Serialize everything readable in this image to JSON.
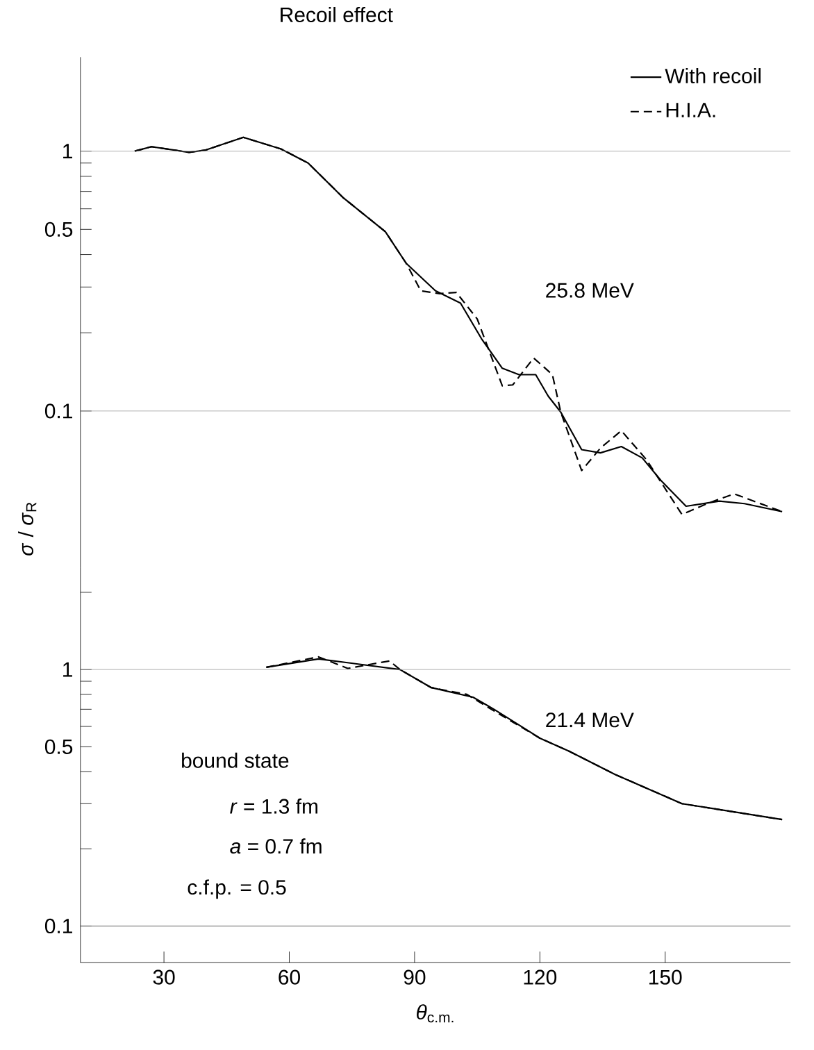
{
  "chart_data": [
    {
      "type": "line",
      "title": "Recoil effect",
      "ylabel": "*σ* / *σ*$_{R}$",
      "log": "y",
      "tick_labels": "y",
      "legend": "top right",
      "xlim": [
        10,
        180
      ],
      "ylim": [
        0.025,
        2.3
      ],
      "yticks": [
        1,
        {
          "value": 0.9,
          "label": null
        },
        {
          "value": 0.8,
          "label": null
        },
        {
          "value": 0.7,
          "label": null
        },
        {
          "value": 0.6,
          "label": null
        },
        0.5,
        {
          "value": 0.4,
          "label": null
        },
        {
          "value": 0.3,
          "label": null
        },
        {
          "value": 0.2,
          "label": null
        },
        0.1
      ],
      "ref_lines": [
        {
          "axis": "y",
          "value": 1,
          "color": "#999999"
        },
        {
          "axis": "y",
          "value": 0.1,
          "color": "#999999"
        }
      ],
      "annotations": [
        "25.8 MeV"
      ],
      "series": [
        {
          "name": "With recoil",
          "color": "#000000",
          "line_style": "solid",
          "x": [
            23,
            27,
            36,
            40,
            49,
            58,
            64.5,
            73,
            83,
            88,
            95,
            101,
            106,
            111,
            115,
            119,
            122,
            125,
            130,
            134.5,
            139.5,
            144.5,
            149,
            155,
            163,
            169,
            178
          ],
          "values": [
            1.0,
            1.04,
            0.99,
            1.01,
            1.13,
            1.02,
            0.9,
            0.66,
            0.49,
            0.37,
            0.29,
            0.26,
            0.19,
            0.146,
            0.138,
            0.138,
            0.114,
            0.099,
            0.071,
            0.069,
            0.073,
            0.066,
            0.054,
            0.043,
            0.045,
            0.044,
            0.041
          ]
        },
        {
          "name": "H.I.A.",
          "color": "#000000",
          "line_style": "dashed",
          "x": [
            23,
            27,
            36,
            40,
            49,
            58,
            64.5,
            73,
            83,
            88,
            91.5,
            96,
            100,
            105,
            111,
            113.5,
            118.5,
            123,
            125,
            130,
            134.5,
            139.5,
            145.5,
            154,
            160,
            166.5,
            178
          ],
          "values": [
            1.0,
            1.04,
            0.99,
            1.01,
            1.13,
            1.02,
            0.9,
            0.66,
            0.49,
            0.37,
            0.29,
            0.283,
            0.286,
            0.226,
            0.125,
            0.126,
            0.16,
            0.138,
            0.099,
            0.059,
            0.072,
            0.084,
            0.065,
            0.04,
            0.044,
            0.048,
            0.041
          ]
        }
      ]
    },
    {
      "type": "line",
      "xlabel": "*θ*$_{c.m.}$",
      "log": "y",
      "xlim": [
        10,
        180
      ],
      "ylim": [
        0.072,
        2.5
      ],
      "xticks": [
        30,
        60,
        90,
        120,
        150
      ],
      "yticks": [
        {
          "value": 2,
          "label": null
        },
        1,
        {
          "value": 0.9,
          "label": null
        },
        {
          "value": 0.8,
          "label": null
        },
        {
          "value": 0.7,
          "label": null
        },
        {
          "value": 0.6,
          "label": null
        },
        0.5,
        {
          "value": 0.4,
          "label": null
        },
        {
          "value": 0.3,
          "label": null
        },
        {
          "value": 0.2,
          "label": null
        },
        0.1
      ],
      "ref_lines": [
        {
          "axis": "y",
          "value": 1,
          "color": "#999999"
        },
        {
          "axis": "y",
          "value": 0.1,
          "color": "#333333"
        }
      ],
      "annotations": [
        "21.4 MeV",
        "bound state",
        "*r* = 1.3 fm",
        "*a* = 0.7 fm",
        "c.f.p. = 0.5"
      ],
      "series": [
        {
          "color": "#000000",
          "line_style": "solid",
          "x": [
            54.5,
            67,
            86.5,
            94,
            104,
            109,
            120,
            127,
            138,
            154,
            178
          ],
          "values": [
            1.02,
            1.1,
            1.0,
            0.85,
            0.78,
            0.7,
            0.54,
            0.48,
            0.39,
            0.3,
            0.26
          ]
        },
        {
          "color": "#000000",
          "line_style": "dashed",
          "x": [
            54.5,
            67,
            74,
            84,
            86.5,
            94,
            102.5,
            109,
            120,
            127,
            138,
            154,
            178
          ],
          "values": [
            1.02,
            1.12,
            1.01,
            1.08,
            1.0,
            0.85,
            0.8,
            0.69,
            0.54,
            0.48,
            0.39,
            0.3,
            0.26
          ]
        }
      ]
    }
  ]
}
